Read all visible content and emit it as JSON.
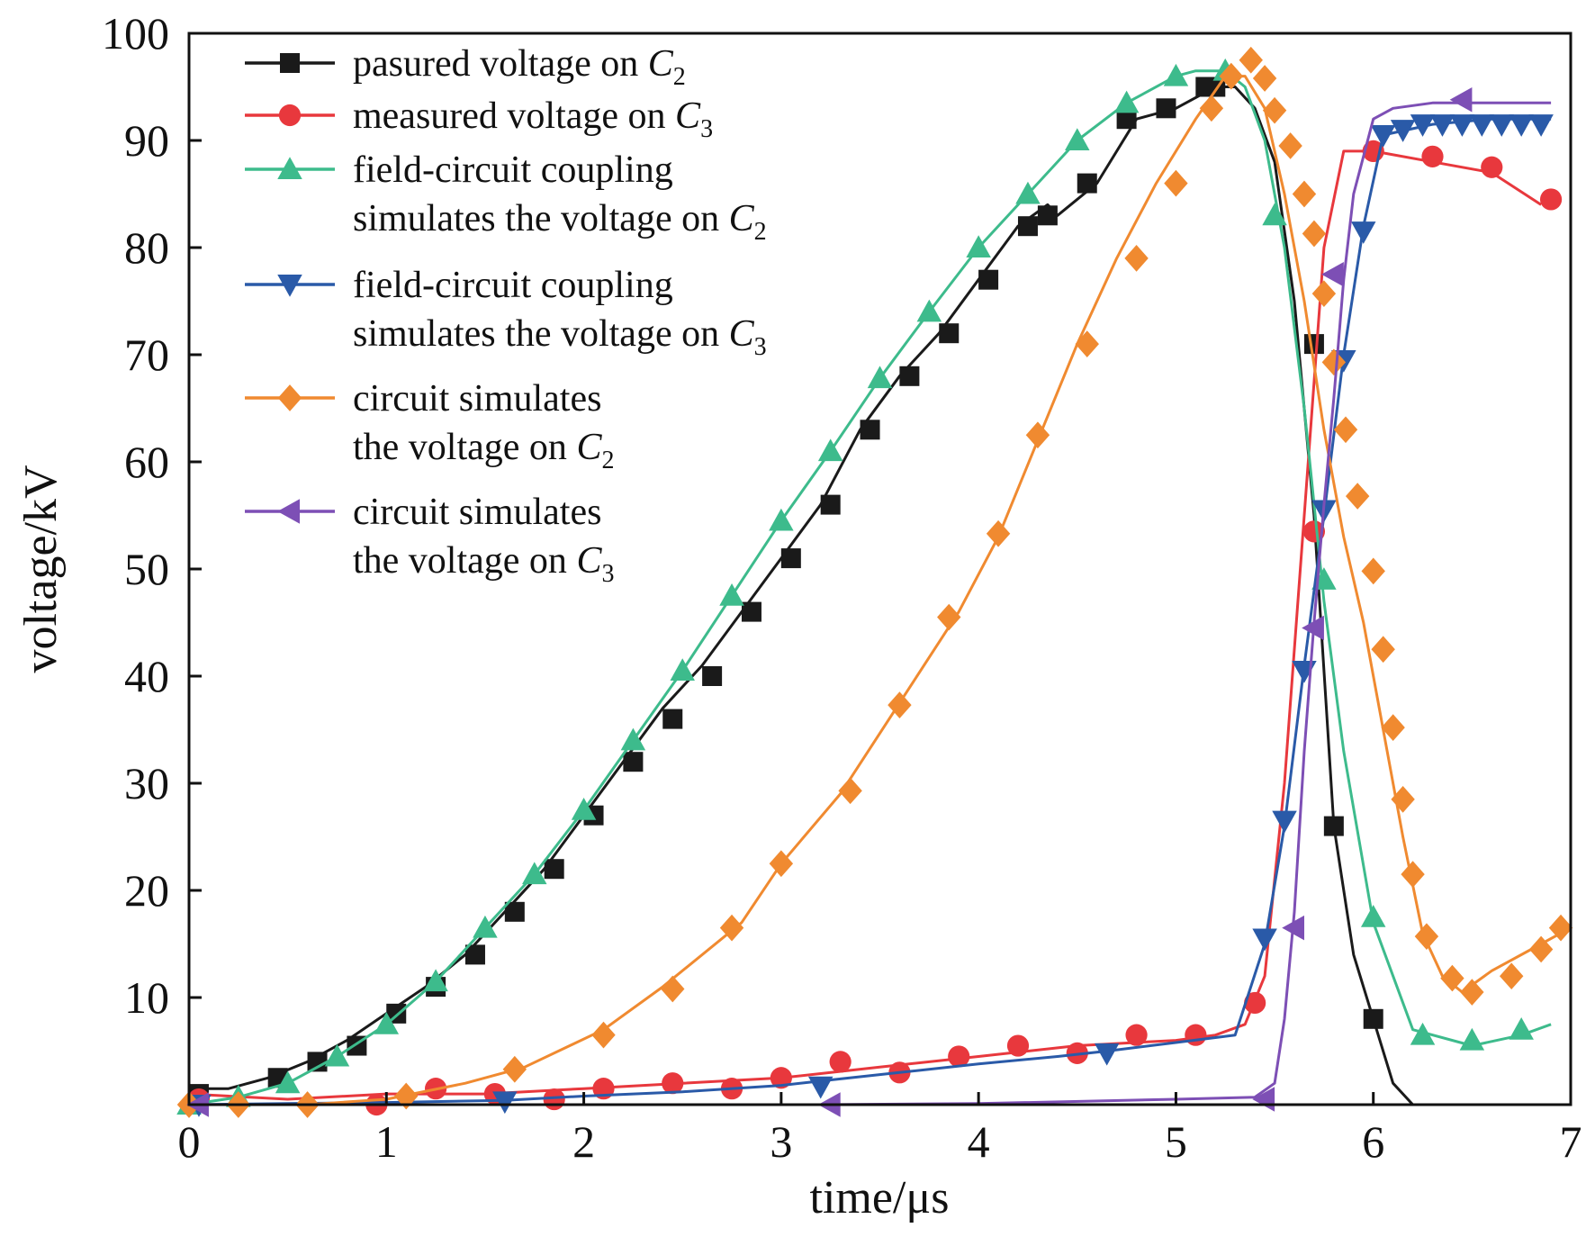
{
  "chart_data": {
    "type": "line",
    "xlabel": "time/μs",
    "ylabel": "voltage/kV",
    "xlim": [
      0,
      7
    ],
    "ylim": [
      0,
      100
    ],
    "x_ticks": [
      "0",
      "1",
      "2",
      "3",
      "4",
      "5",
      "6",
      "7"
    ],
    "y_ticks": [
      "10",
      "20",
      "30",
      "40",
      "50",
      "60",
      "70",
      "80",
      "90",
      "100"
    ],
    "grid": false,
    "legend_position": "top-left",
    "series": [
      {
        "name": "pasured voltage on C2",
        "legend_lines": [
          "pasured voltage on C",
          "2"
        ],
        "color": "#1a1a1a",
        "marker": "square",
        "x": [
          0.0,
          0.1,
          0.2,
          0.4,
          0.6,
          0.8,
          1.0,
          1.2,
          1.4,
          1.6,
          1.8,
          2.0,
          2.2,
          2.4,
          2.6,
          2.8,
          3.0,
          3.2,
          3.4,
          3.6,
          3.8,
          4.0,
          4.2,
          4.35,
          4.4,
          4.6,
          4.8,
          5.0,
          5.1,
          5.2,
          5.3,
          5.4,
          5.5,
          5.6,
          5.7,
          5.8,
          5.9,
          6.0,
          6.1,
          6.2
        ],
        "y": [
          1,
          1.5,
          1.5,
          2.5,
          4,
          6,
          8.5,
          11,
          14,
          18,
          22,
          27,
          32,
          37,
          41,
          46,
          51,
          56,
          63,
          68,
          72,
          77,
          82,
          84,
          83,
          86,
          92,
          93,
          94,
          95,
          95,
          93,
          88,
          75,
          55,
          26,
          14,
          8,
          2,
          0
        ],
        "marker_x": [
          0.05,
          0.45,
          0.65,
          0.85,
          1.05,
          1.25,
          1.45,
          1.65,
          1.85,
          2.05,
          2.25,
          2.45,
          2.65,
          2.85,
          3.05,
          3.25,
          3.45,
          3.65,
          3.85,
          4.05,
          4.25,
          4.35,
          4.55,
          4.75,
          4.95,
          5.15,
          5.2,
          5.7,
          5.8,
          6.0
        ],
        "marker_y": [
          1,
          2.5,
          4,
          5.5,
          8.5,
          11,
          14,
          18,
          22,
          27,
          32,
          36,
          40,
          46,
          51,
          56,
          63,
          68,
          72,
          77,
          82,
          83,
          86,
          92,
          93,
          95,
          95,
          71,
          26,
          8
        ]
      },
      {
        "name": "measured voltage on C3",
        "legend_lines": [
          "measured voltage on C",
          "3"
        ],
        "color": "#e8383d",
        "marker": "circle",
        "x": [
          0.0,
          0.5,
          1.0,
          1.5,
          2.0,
          2.5,
          3.0,
          3.5,
          4.0,
          4.5,
          5.0,
          5.2,
          5.35,
          5.45,
          5.55,
          5.65,
          5.75,
          5.85,
          6.0,
          6.3,
          6.6,
          6.85
        ],
        "y": [
          1,
          0.5,
          1.0,
          1.0,
          1.5,
          2.0,
          2.5,
          3.5,
          4.5,
          5.5,
          6.0,
          6.5,
          7.5,
          12,
          30,
          55,
          80,
          89,
          89,
          88,
          87,
          84
        ],
        "marker_x": [
          0.05,
          0.95,
          1.25,
          1.55,
          1.85,
          2.1,
          2.45,
          2.75,
          3.0,
          3.3,
          3.6,
          3.9,
          4.2,
          4.5,
          4.8,
          5.1,
          5.4,
          5.7,
          6.0,
          6.3,
          6.6,
          6.9
        ],
        "marker_y": [
          0.5,
          0,
          1.5,
          1.0,
          0.5,
          1.5,
          2.0,
          1.5,
          2.5,
          4.0,
          3.0,
          4.5,
          5.5,
          4.8,
          6.5,
          6.5,
          9.5,
          53.5,
          89,
          88.5,
          87.5,
          84.5
        ]
      },
      {
        "name": "field-circuit coupling simulates the voltage on C2",
        "legend_lines": [
          "field-circuit coupling",
          "simulates the voltage on C",
          "2"
        ],
        "color": "#3dbb8c",
        "marker": "triangle-up",
        "x": [
          0.0,
          0.25,
          0.5,
          0.75,
          1.0,
          1.25,
          1.5,
          1.75,
          2.0,
          2.25,
          2.5,
          2.75,
          3.0,
          3.25,
          3.5,
          3.75,
          4.0,
          4.25,
          4.5,
          4.75,
          5.0,
          5.1,
          5.25,
          5.35,
          5.45,
          5.55,
          5.65,
          5.75,
          5.85,
          6.0,
          6.2,
          6.5,
          6.75,
          6.9
        ],
        "y": [
          0,
          0.7,
          2.0,
          4.5,
          7.5,
          11.5,
          16.5,
          21.5,
          27.5,
          34,
          40.5,
          47.5,
          54.5,
          61,
          67.8,
          74,
          80,
          85,
          90,
          93.5,
          96,
          96.5,
          96.5,
          95,
          90,
          80,
          65,
          47,
          33,
          17,
          7,
          5.5,
          6.5,
          7.5
        ],
        "marker_x": [
          0.0,
          0.25,
          0.5,
          0.75,
          1.0,
          1.25,
          1.5,
          1.75,
          2.0,
          2.25,
          2.5,
          2.75,
          3.0,
          3.25,
          3.5,
          3.75,
          4.0,
          4.25,
          4.5,
          4.75,
          5.0,
          5.25,
          5.5,
          5.75,
          6.0,
          6.25,
          6.5,
          6.75
        ],
        "marker_y": [
          0,
          0.7,
          2.0,
          4.5,
          7.5,
          11.5,
          16.5,
          21.5,
          27.5,
          34,
          40.5,
          47.5,
          54.5,
          61,
          67.8,
          74,
          80,
          85,
          90,
          93.5,
          96,
          96.5,
          83,
          49,
          17.5,
          6.5,
          6,
          7
        ]
      },
      {
        "name": "field-circuit coupling simulates the voltage on C3",
        "legend_lines": [
          "field-circuit coupling",
          "simulates the voltage on C",
          "3"
        ],
        "color": "#2a5aa8",
        "marker": "triangle-down",
        "x": [
          0.0,
          0.5,
          1.0,
          1.6,
          2.0,
          2.5,
          3.0,
          3.2,
          3.6,
          4.0,
          4.4,
          4.65,
          5.0,
          5.3,
          5.45,
          5.55,
          5.65,
          5.75,
          5.85,
          5.95,
          6.05,
          6.3,
          6.6,
          6.9
        ],
        "y": [
          0,
          0.1,
          0.2,
          0.4,
          0.8,
          1.2,
          1.8,
          2.2,
          3.0,
          3.8,
          4.5,
          5.0,
          5.8,
          6.5,
          15,
          26,
          41,
          55,
          70,
          82,
          90.5,
          91.5,
          92,
          92
        ],
        "marker_x": [
          0.05,
          1.6,
          3.2,
          4.65,
          5.45,
          5.55,
          5.65,
          5.75,
          5.85,
          5.95,
          6.05,
          6.15,
          6.25,
          6.35,
          6.45,
          6.55,
          6.65,
          6.75,
          6.85
        ],
        "marker_y": [
          0,
          0.3,
          1.7,
          4.8,
          15.5,
          26.5,
          40.5,
          55.5,
          69.5,
          81.5,
          90.5,
          91,
          91.5,
          91.5,
          91.5,
          91.5,
          91.5,
          91.5,
          91.5
        ]
      },
      {
        "name": "circuit simulates the voltage on C2",
        "legend_lines": [
          "circuit simulates",
          "the voltage on C",
          "2"
        ],
        "color": "#f08a30",
        "marker": "diamond",
        "x": [
          0.0,
          0.3,
          0.6,
          1.0,
          1.4,
          1.7,
          2.1,
          2.4,
          2.8,
          3.0,
          3.3,
          3.6,
          3.9,
          4.1,
          4.3,
          4.5,
          4.7,
          4.9,
          5.1,
          5.25,
          5.35,
          5.45,
          5.55,
          5.65,
          5.75,
          5.85,
          5.95,
          6.05,
          6.15,
          6.25,
          6.35,
          6.45,
          6.6,
          6.8,
          6.95
        ],
        "y": [
          0,
          0.0,
          0.0,
          0.5,
          2.0,
          3.5,
          7.0,
          11,
          17,
          22.5,
          29,
          37.5,
          46,
          53,
          62,
          71,
          79,
          86,
          92,
          96,
          96,
          93,
          85,
          75,
          63,
          53,
          45,
          35,
          25,
          16,
          12,
          10.5,
          12.5,
          14.5,
          16
        ],
        "marker_x": [
          0.0,
          0.25,
          0.6,
          1.1,
          1.65,
          2.1,
          2.45,
          2.75,
          3.0,
          3.35,
          3.6,
          3.85,
          4.1,
          4.3,
          4.55,
          4.8,
          5.0,
          5.18,
          5.28,
          5.38,
          5.45,
          5.5,
          5.58,
          5.65,
          5.7,
          5.75,
          5.8,
          5.86,
          5.92,
          6.0,
          6.05,
          6.1,
          6.15,
          6.2,
          6.27,
          6.4,
          6.5,
          6.7,
          6.85,
          6.95
        ],
        "marker_y": [
          0,
          0,
          0,
          0.8,
          3.3,
          6.5,
          10.8,
          16.5,
          22.5,
          29.3,
          37.3,
          45.5,
          53.3,
          62.5,
          71,
          79,
          86,
          93,
          96,
          97.5,
          95.8,
          92.8,
          89.5,
          85,
          81.3,
          75.7,
          69.3,
          63,
          56.8,
          49.8,
          42.5,
          35.2,
          28.5,
          21.5,
          15.7,
          11.8,
          10.5,
          12,
          14.5,
          16.5
        ]
      },
      {
        "name": "circuit simulates the voltage on C3",
        "legend_lines": [
          "circuit simulates",
          "the voltage on C",
          "3"
        ],
        "color": "#7d4fb5",
        "marker": "triangle-left",
        "x": [
          0.0,
          1.0,
          2.0,
          3.0,
          3.2,
          4.0,
          5.0,
          5.4,
          5.5,
          5.55,
          5.6,
          5.65,
          5.7,
          5.75,
          5.8,
          5.85,
          5.9,
          6.0,
          6.1,
          6.3,
          6.6,
          6.9
        ],
        "y": [
          0,
          0,
          0,
          0,
          0,
          0.1,
          0.5,
          0.7,
          2,
          8,
          18,
          33,
          45,
          56,
          66,
          77,
          85,
          92,
          93,
          93.5,
          93.5,
          93.5
        ],
        "marker_x": [
          0.05,
          3.25,
          5.45,
          5.6,
          5.7,
          5.8,
          6.45
        ],
        "marker_y": [
          0,
          0,
          0.5,
          16.5,
          44.5,
          77.5,
          93.8
        ]
      }
    ]
  }
}
